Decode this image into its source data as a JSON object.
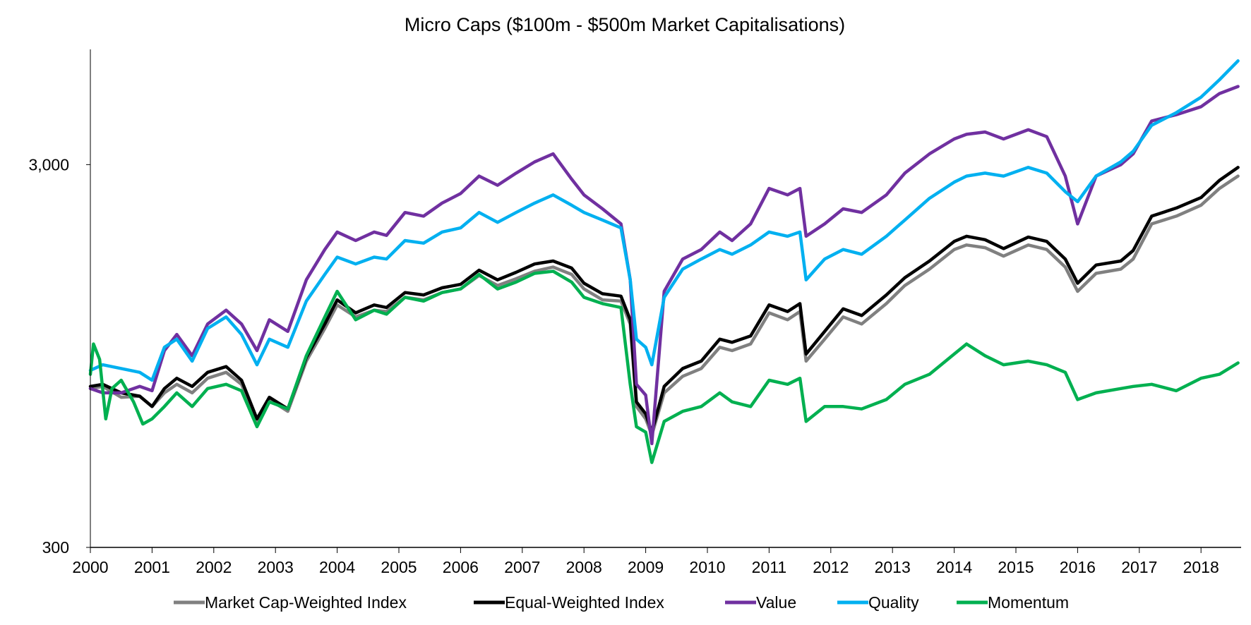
{
  "chart_data": {
    "type": "line",
    "title": "Micro Caps ($100m - $500m Market Capitalisations)",
    "xlabel": "",
    "ylabel": "",
    "y_scale": "log",
    "ylim": [
      300,
      6000
    ],
    "y_ticks": [
      300,
      3000
    ],
    "y_tick_labels": [
      "300",
      "3,000"
    ],
    "xlim": [
      2000.0,
      2018.65
    ],
    "x_ticks": [
      2000,
      2001,
      2002,
      2003,
      2004,
      2005,
      2006,
      2007,
      2008,
      2009,
      2010,
      2011,
      2012,
      2013,
      2014,
      2015,
      2016,
      2017,
      2018
    ],
    "x_tick_labels": [
      "2000",
      "2001",
      "2002",
      "2003",
      "2004",
      "2005",
      "2006",
      "2007",
      "2008",
      "2009",
      "2010",
      "2011",
      "2012",
      "2013",
      "2014",
      "2015",
      "2016",
      "2017",
      "2018"
    ],
    "grid": false,
    "legend_position": "bottom",
    "series": [
      {
        "name": "Market Cap-Weighted Index",
        "color": "#808080",
        "x": [
          2000.0,
          2000.2,
          2000.5,
          2000.8,
          2001.0,
          2001.2,
          2001.4,
          2001.65,
          2001.9,
          2002.2,
          2002.45,
          2002.7,
          2002.9,
          2003.2,
          2003.5,
          2003.8,
          2004.0,
          2004.3,
          2004.6,
          2004.8,
          2005.1,
          2005.4,
          2005.7,
          2006.0,
          2006.3,
          2006.6,
          2006.9,
          2007.2,
          2007.5,
          2007.8,
          2008.0,
          2008.3,
          2008.6,
          2008.75,
          2008.85,
          2009.0,
          2009.1,
          2009.3,
          2009.6,
          2009.9,
          2010.2,
          2010.4,
          2010.7,
          2011.0,
          2011.3,
          2011.5,
          2011.6,
          2011.9,
          2012.2,
          2012.5,
          2012.9,
          2013.2,
          2013.6,
          2014.0,
          2014.2,
          2014.5,
          2014.8,
          2015.2,
          2015.5,
          2015.8,
          2016.0,
          2016.3,
          2016.7,
          2016.9,
          2017.2,
          2017.6,
          2018.0,
          2018.3,
          2018.6
        ],
        "y": [
          780,
          790,
          740,
          745,
          700,
          760,
          800,
          760,
          830,
          860,
          800,
          640,
          730,
          680,
          920,
          1120,
          1290,
          1200,
          1250,
          1240,
          1350,
          1330,
          1390,
          1420,
          1540,
          1450,
          1510,
          1580,
          1620,
          1550,
          1420,
          1330,
          1320,
          1150,
          700,
          650,
          590,
          760,
          840,
          880,
          1000,
          980,
          1020,
          1230,
          1180,
          1240,
          920,
          1050,
          1200,
          1150,
          1300,
          1450,
          1600,
          1800,
          1850,
          1820,
          1730,
          1850,
          1800,
          1620,
          1400,
          1560,
          1600,
          1700,
          2100,
          2200,
          2350,
          2600,
          2800
        ]
      },
      {
        "name": "Equal-Weighted Index",
        "color": "#000000",
        "x": [
          2000.0,
          2000.2,
          2000.5,
          2000.8,
          2001.0,
          2001.2,
          2001.4,
          2001.65,
          2001.9,
          2002.2,
          2002.45,
          2002.7,
          2002.9,
          2003.2,
          2003.5,
          2003.8,
          2004.0,
          2004.3,
          2004.6,
          2004.8,
          2005.1,
          2005.4,
          2005.7,
          2006.0,
          2006.3,
          2006.6,
          2006.9,
          2007.2,
          2007.5,
          2007.8,
          2008.0,
          2008.3,
          2008.6,
          2008.75,
          2008.85,
          2009.0,
          2009.1,
          2009.3,
          2009.6,
          2009.9,
          2010.2,
          2010.4,
          2010.7,
          2011.0,
          2011.3,
          2011.5,
          2011.6,
          2011.9,
          2012.2,
          2012.5,
          2012.9,
          2013.2,
          2013.6,
          2014.0,
          2014.2,
          2014.5,
          2014.8,
          2015.2,
          2015.5,
          2015.8,
          2016.0,
          2016.3,
          2016.7,
          2016.9,
          2017.2,
          2017.6,
          2018.0,
          2018.3,
          2018.6
        ],
        "y": [
          790,
          800,
          760,
          745,
          700,
          780,
          830,
          790,
          860,
          890,
          820,
          650,
          740,
          690,
          940,
          1150,
          1330,
          1230,
          1290,
          1270,
          1390,
          1370,
          1430,
          1460,
          1590,
          1500,
          1570,
          1650,
          1680,
          1610,
          1470,
          1380,
          1360,
          1180,
          720,
          670,
          600,
          790,
          880,
          920,
          1050,
          1030,
          1070,
          1290,
          1240,
          1300,
          960,
          1100,
          1260,
          1210,
          1370,
          1520,
          1680,
          1890,
          1950,
          1910,
          1810,
          1940,
          1890,
          1700,
          1470,
          1640,
          1680,
          1790,
          2200,
          2310,
          2460,
          2730,
          2950
        ]
      },
      {
        "name": "Value",
        "color": "#7030a0",
        "x": [
          2000.0,
          2000.2,
          2000.5,
          2000.8,
          2001.0,
          2001.2,
          2001.4,
          2001.65,
          2001.9,
          2002.2,
          2002.45,
          2002.7,
          2002.9,
          2003.2,
          2003.5,
          2003.8,
          2004.0,
          2004.3,
          2004.6,
          2004.8,
          2005.1,
          2005.4,
          2005.7,
          2006.0,
          2006.3,
          2006.6,
          2006.9,
          2007.2,
          2007.5,
          2007.8,
          2008.0,
          2008.3,
          2008.6,
          2008.75,
          2008.85,
          2009.0,
          2009.1,
          2009.3,
          2009.6,
          2009.9,
          2010.2,
          2010.4,
          2010.7,
          2011.0,
          2011.3,
          2011.5,
          2011.6,
          2011.9,
          2012.2,
          2012.5,
          2012.9,
          2013.2,
          2013.6,
          2014.0,
          2014.2,
          2014.5,
          2014.8,
          2015.2,
          2015.5,
          2015.8,
          2016.0,
          2016.3,
          2016.7,
          2016.9,
          2017.2,
          2017.6,
          2018.0,
          2018.3,
          2018.6
        ],
        "y": [
          780,
          760,
          760,
          790,
          770,
          980,
          1080,
          950,
          1150,
          1250,
          1150,
          980,
          1180,
          1100,
          1500,
          1800,
          2000,
          1900,
          2000,
          1960,
          2250,
          2200,
          2380,
          2520,
          2800,
          2650,
          2850,
          3050,
          3200,
          2750,
          2500,
          2300,
          2100,
          1500,
          800,
          750,
          560,
          1400,
          1700,
          1800,
          2000,
          1900,
          2100,
          2600,
          2500,
          2600,
          1950,
          2100,
          2300,
          2250,
          2500,
          2850,
          3200,
          3500,
          3600,
          3650,
          3500,
          3700,
          3550,
          2800,
          2100,
          2800,
          3000,
          3200,
          3900,
          4050,
          4250,
          4600,
          4800
        ]
      },
      {
        "name": "Quality",
        "color": "#00b0f0",
        "x": [
          2000.0,
          2000.2,
          2000.5,
          2000.8,
          2001.0,
          2001.2,
          2001.4,
          2001.65,
          2001.9,
          2002.2,
          2002.45,
          2002.7,
          2002.9,
          2003.2,
          2003.5,
          2003.8,
          2004.0,
          2004.3,
          2004.6,
          2004.8,
          2005.1,
          2005.4,
          2005.7,
          2006.0,
          2006.3,
          2006.6,
          2006.9,
          2007.2,
          2007.5,
          2007.8,
          2008.0,
          2008.3,
          2008.6,
          2008.75,
          2008.85,
          2009.0,
          2009.1,
          2009.3,
          2009.6,
          2009.9,
          2010.2,
          2010.4,
          2010.7,
          2011.0,
          2011.3,
          2011.5,
          2011.6,
          2011.9,
          2012.2,
          2012.5,
          2012.9,
          2013.2,
          2013.6,
          2014.0,
          2014.2,
          2014.5,
          2014.8,
          2015.2,
          2015.5,
          2015.8,
          2016.0,
          2016.3,
          2016.7,
          2016.9,
          2017.2,
          2017.6,
          2018.0,
          2018.3,
          2018.6
        ],
        "y": [
          870,
          900,
          880,
          860,
          820,
          1000,
          1050,
          920,
          1120,
          1200,
          1080,
          900,
          1050,
          1000,
          1320,
          1550,
          1720,
          1650,
          1720,
          1700,
          1900,
          1870,
          2000,
          2050,
          2250,
          2120,
          2250,
          2380,
          2500,
          2350,
          2250,
          2150,
          2050,
          1500,
          1050,
          1000,
          900,
          1350,
          1600,
          1700,
          1800,
          1750,
          1850,
          2000,
          1950,
          2000,
          1500,
          1700,
          1800,
          1750,
          1950,
          2150,
          2450,
          2700,
          2800,
          2850,
          2800,
          2950,
          2850,
          2550,
          2400,
          2800,
          3050,
          3250,
          3800,
          4100,
          4500,
          5000,
          5600
        ]
      },
      {
        "name": "Momentum",
        "color": "#00b050",
        "x": [
          2000.0,
          2000.05,
          2000.15,
          2000.25,
          2000.35,
          2000.5,
          2000.7,
          2000.85,
          2001.0,
          2001.2,
          2001.4,
          2001.65,
          2001.9,
          2002.2,
          2002.45,
          2002.7,
          2002.9,
          2003.2,
          2003.5,
          2003.8,
          2004.0,
          2004.3,
          2004.6,
          2004.8,
          2005.1,
          2005.4,
          2005.7,
          2006.0,
          2006.3,
          2006.6,
          2006.9,
          2007.2,
          2007.5,
          2007.8,
          2008.0,
          2008.3,
          2008.6,
          2008.75,
          2008.85,
          2009.0,
          2009.1,
          2009.3,
          2009.6,
          2009.9,
          2010.2,
          2010.4,
          2010.7,
          2011.0,
          2011.3,
          2011.5,
          2011.6,
          2011.9,
          2012.2,
          2012.5,
          2012.9,
          2013.2,
          2013.6,
          2014.0,
          2014.2,
          2014.5,
          2014.8,
          2015.2,
          2015.5,
          2015.8,
          2016.0,
          2016.3,
          2016.7,
          2016.9,
          2017.2,
          2017.6,
          2018.0,
          2018.3,
          2018.6
        ],
        "y": [
          850,
          1020,
          930,
          650,
          780,
          820,
          720,
          630,
          650,
          700,
          760,
          700,
          780,
          800,
          770,
          620,
          720,
          690,
          950,
          1200,
          1400,
          1180,
          1250,
          1220,
          1350,
          1320,
          1390,
          1420,
          1550,
          1420,
          1480,
          1560,
          1580,
          1480,
          1350,
          1300,
          1270,
          800,
          620,
          600,
          500,
          640,
          680,
          700,
          760,
          720,
          700,
          820,
          800,
          830,
          640,
          700,
          700,
          690,
          730,
          800,
          850,
          960,
          1020,
          950,
          900,
          920,
          900,
          860,
          730,
          760,
          780,
          790,
          800,
          770,
          830,
          850,
          910
        ]
      }
    ]
  }
}
